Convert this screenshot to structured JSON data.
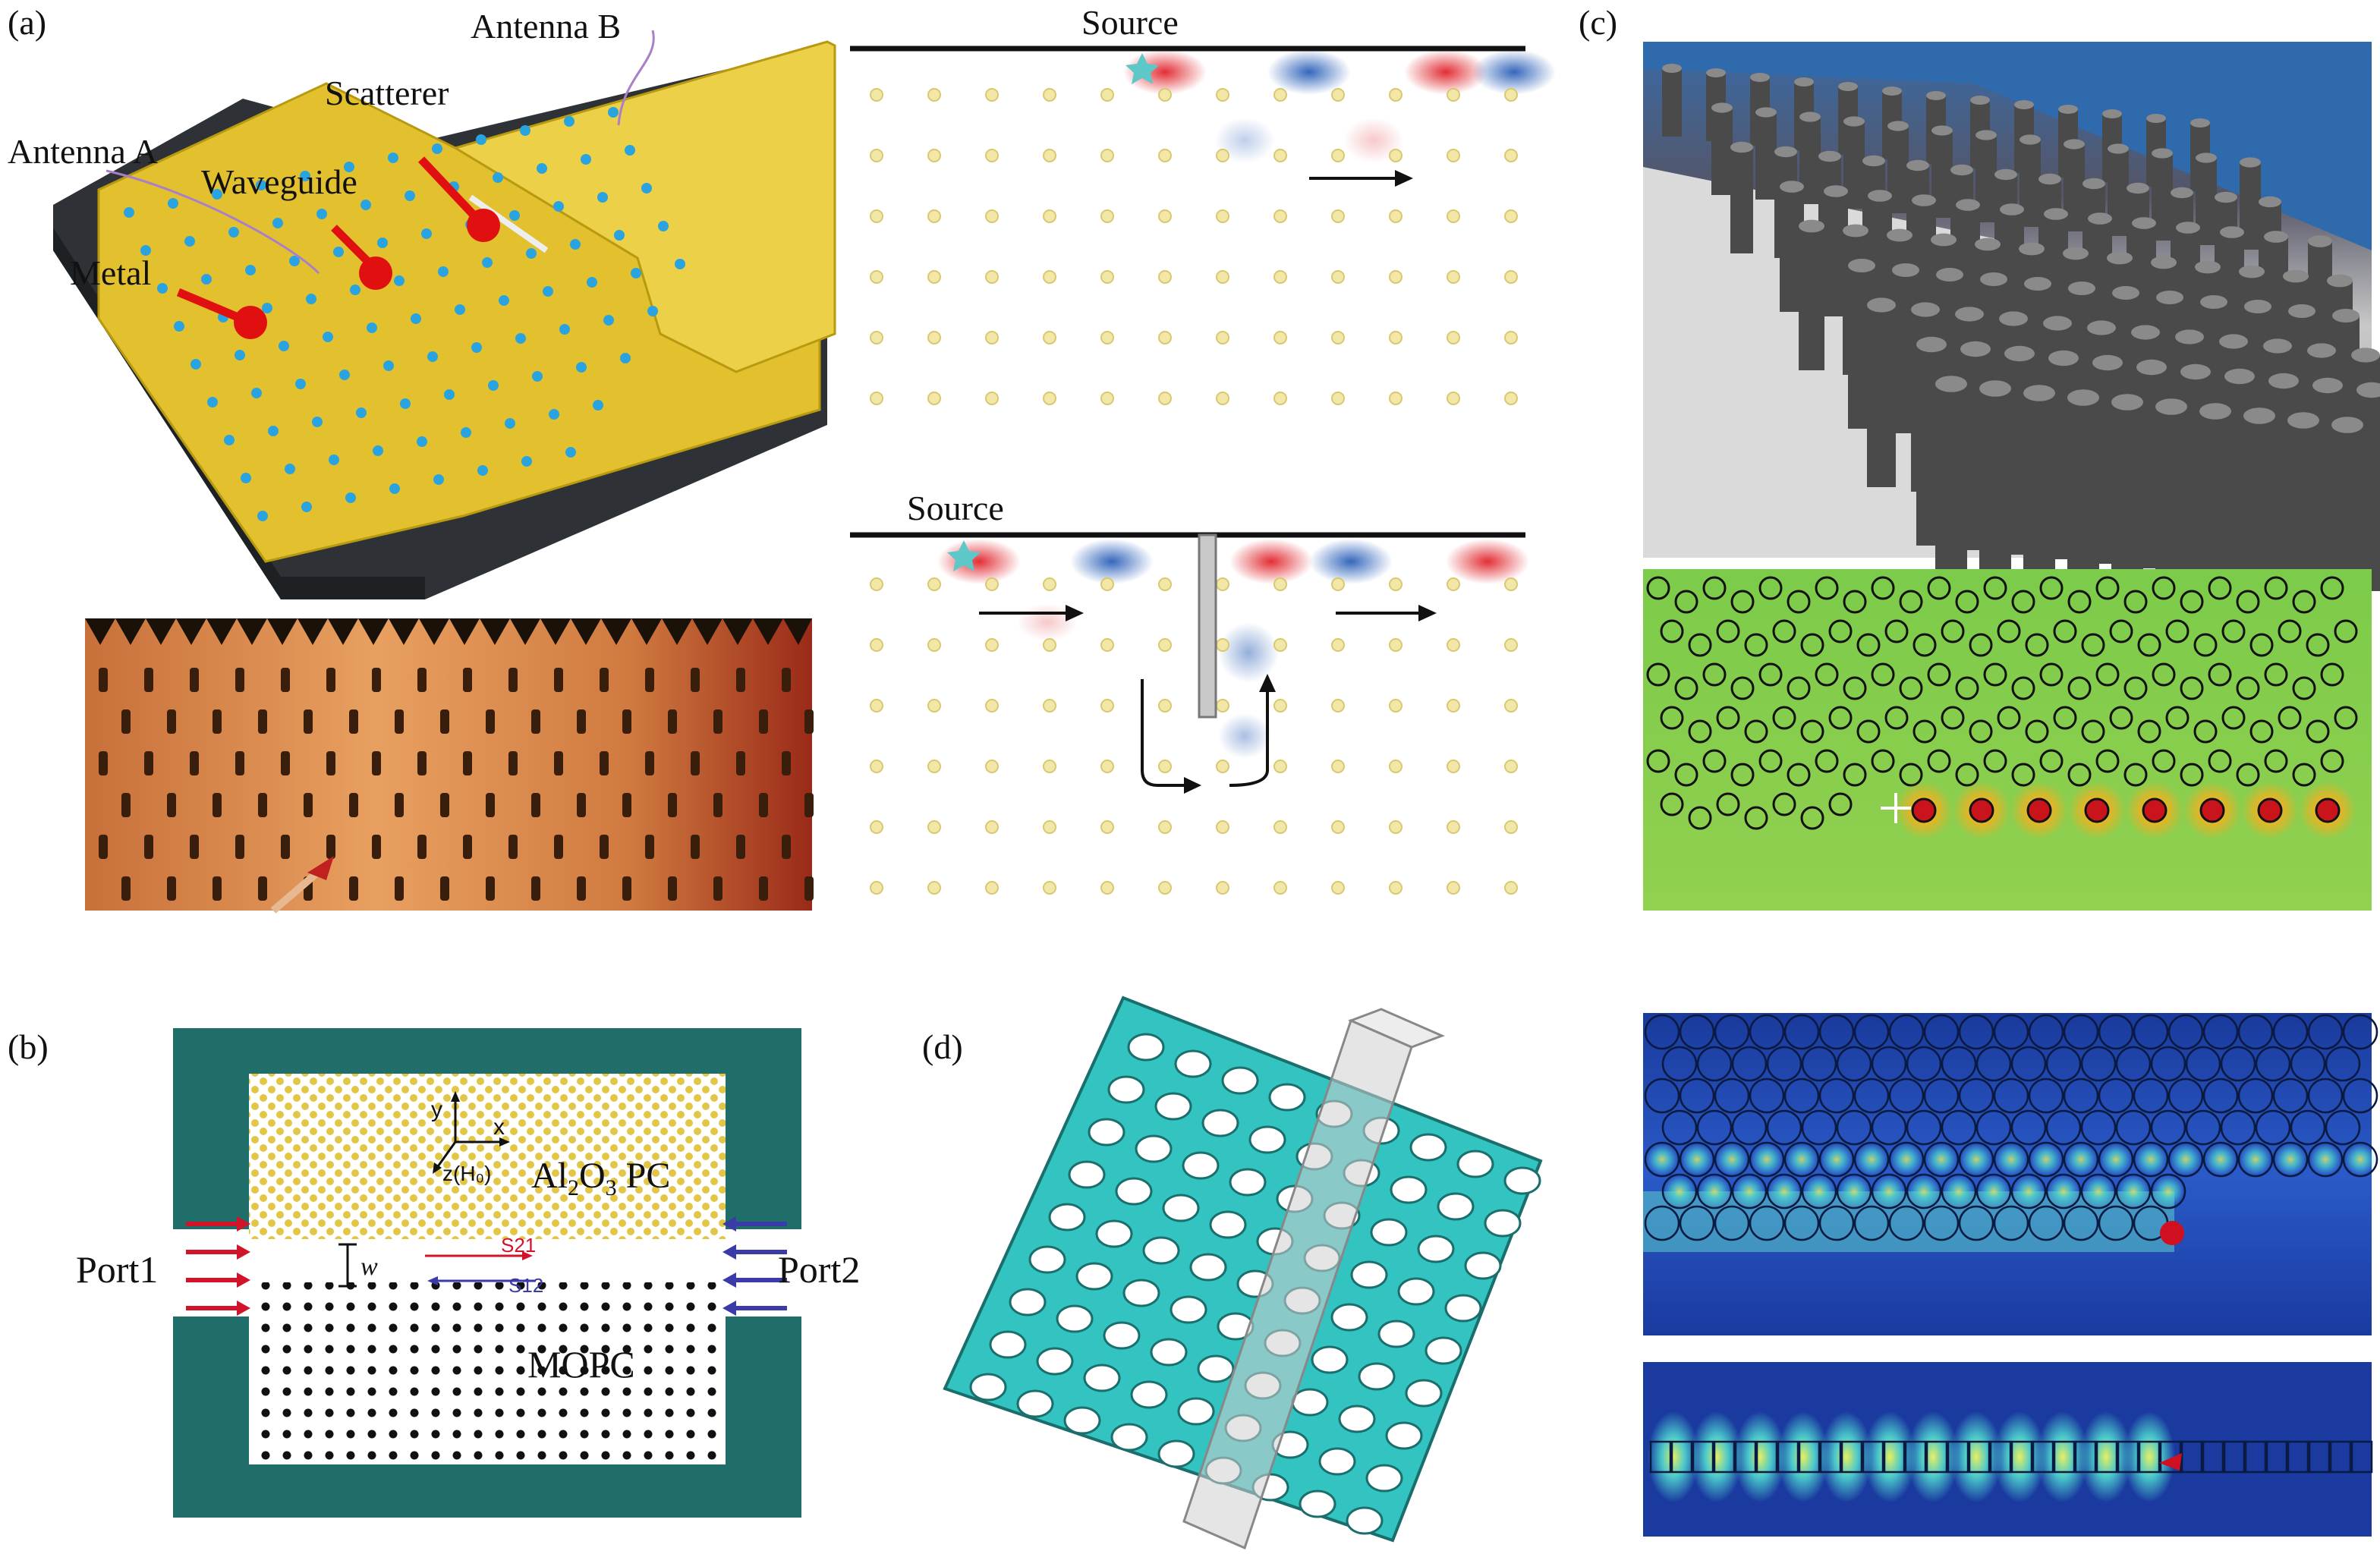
{
  "panel_labels": {
    "a": "(a)",
    "b": "(b)",
    "c": "(c)",
    "d": "(d)"
  },
  "panel_a": {
    "antenna_b": "Antenna B",
    "scatterer": "Scatterer",
    "antenna_a": "Antenna A",
    "waveguide": "Waveguide",
    "metal": "Metal"
  },
  "sim": {
    "source_top": "Source",
    "source_bottom": "Source"
  },
  "panel_b": {
    "axis_y": "y",
    "axis_x": "x",
    "axis_z": "z(H₀)",
    "pc_label_prefix": "Al",
    "pc_sub1": "2",
    "pc_mid": "O",
    "pc_sub2": "3",
    "pc_suffix": " PC",
    "port1": "Port1",
    "port2": "Port2",
    "width": "w",
    "s21": "S21",
    "s12": "S12",
    "mopc": "MOPC"
  },
  "colors": {
    "teal": "#1f6e6a",
    "gold": "#e2c646",
    "field_red": "#e0242b",
    "field_blue": "#2a5fb8",
    "lattice": "#33c3c0"
  }
}
